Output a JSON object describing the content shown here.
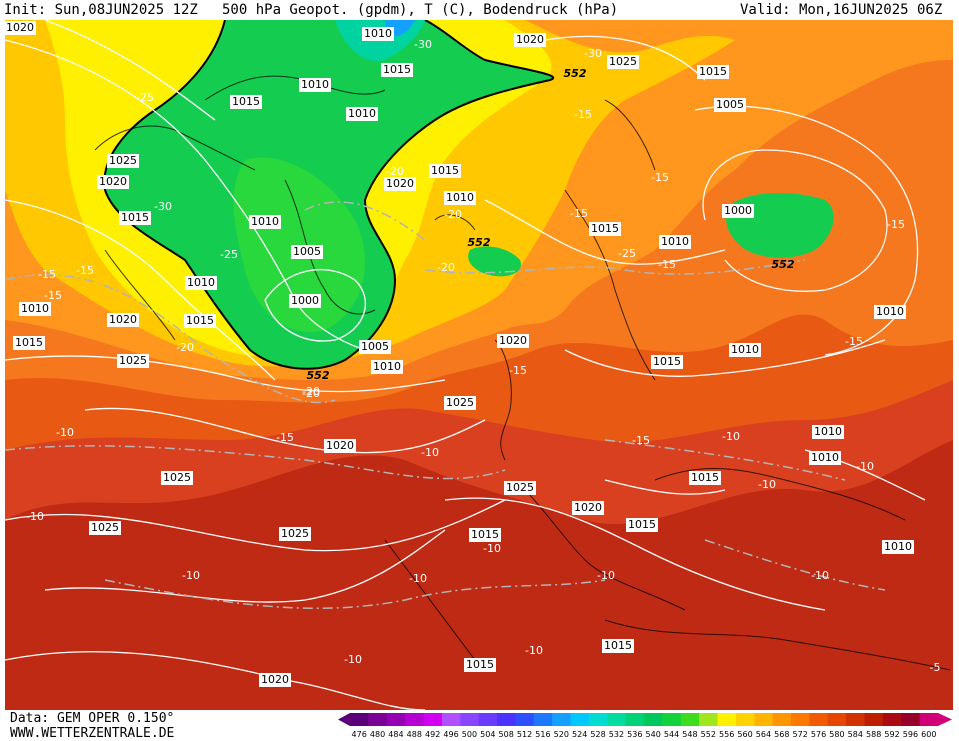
{
  "header": {
    "init": "Init: Sun,08JUN2025 12Z",
    "title": "500 hPa Geopot. (gpdm), T (C), Bodendruck (hPa)",
    "valid": "Valid: Mon,16JUN2025 06Z"
  },
  "footer": {
    "data_source": "Data: GEM OPER 0.150°",
    "website": "WWW.WETTERZENTRALE.DE"
  },
  "colorbar": {
    "values": [
      "476",
      "480",
      "484",
      "488",
      "492",
      "496",
      "500",
      "504",
      "508",
      "512",
      "516",
      "520",
      "524",
      "528",
      "532",
      "536",
      "540",
      "544",
      "548",
      "552",
      "556",
      "560",
      "564",
      "568",
      "572",
      "576",
      "580",
      "584",
      "588",
      "592",
      "596",
      "600"
    ],
    "colors": [
      "#5a007a",
      "#7a0096",
      "#9600b4",
      "#b400d2",
      "#d200f0",
      "#b050ff",
      "#8a46ff",
      "#6a3cff",
      "#4b32ff",
      "#2d50ff",
      "#1e78ff",
      "#14a0ff",
      "#00c8ff",
      "#00dcd2",
      "#00dca0",
      "#00d278",
      "#00c85a",
      "#14d23c",
      "#3cdc1e",
      "#a0e61e",
      "#fff000",
      "#ffd200",
      "#ffb400",
      "#ff9600",
      "#ff7800",
      "#f05a00",
      "#e64600",
      "#d23200",
      "#be1e00",
      "#aa0a14",
      "#960028",
      "#d20078"
    ]
  },
  "map": {
    "isobar_labels": [
      {
        "text": "1020"
      },
      {
        "text": "1010"
      },
      {
        "text": "1015"
      },
      {
        "text": "1020"
      },
      {
        "text": "1025"
      },
      {
        "text": "1015"
      },
      {
        "text": "1015"
      },
      {
        "text": "1025"
      },
      {
        "text": "1010"
      },
      {
        "text": "1010"
      },
      {
        "text": "1020"
      },
      {
        "text": "1015"
      },
      {
        "text": "1010"
      },
      {
        "text": "1020"
      },
      {
        "text": "1005"
      },
      {
        "text": "1015"
      },
      {
        "text": "1010"
      },
      {
        "text": "1005"
      },
      {
        "text": "1000"
      },
      {
        "text": "1010"
      },
      {
        "text": "1010"
      },
      {
        "text": "1015"
      },
      {
        "text": "1010"
      },
      {
        "text": "1005"
      },
      {
        "text": "1000"
      },
      {
        "text": "1010"
      },
      {
        "text": "1015"
      },
      {
        "text": "1020"
      },
      {
        "text": "1015"
      },
      {
        "text": "1010"
      },
      {
        "text": "1025"
      },
      {
        "text": "1020"
      },
      {
        "text": "1025"
      },
      {
        "text": "1025"
      },
      {
        "text": "1025"
      },
      {
        "text": "1025"
      },
      {
        "text": "1020"
      },
      {
        "text": "1015"
      },
      {
        "text": "1015"
      },
      {
        "text": "1010"
      },
      {
        "text": "1010"
      },
      {
        "text": "1010"
      },
      {
        "text": "1015"
      },
      {
        "text": "1025"
      },
      {
        "text": "1015"
      },
      {
        "text": "1020"
      },
      {
        "text": "1015"
      },
      {
        "text": "1020"
      },
      {
        "text": "1010"
      },
      {
        "text": "1015"
      }
    ],
    "temp_labels": [
      {
        "text": "-25"
      },
      {
        "text": "-30"
      },
      {
        "text": "-30"
      },
      {
        "text": "-30"
      },
      {
        "text": "-25"
      },
      {
        "text": "-25"
      },
      {
        "text": "-15"
      },
      {
        "text": "-15"
      },
      {
        "text": "-20"
      },
      {
        "text": "-20"
      },
      {
        "text": "-20"
      },
      {
        "text": "-20"
      },
      {
        "text": "-20"
      },
      {
        "text": "-15"
      },
      {
        "text": "-15"
      },
      {
        "text": "-15"
      },
      {
        "text": "-15"
      },
      {
        "text": "-15"
      },
      {
        "text": "-15"
      },
      {
        "text": "-15"
      },
      {
        "text": "-15"
      },
      {
        "text": "-15"
      },
      {
        "text": "-10"
      },
      {
        "text": "-10"
      },
      {
        "text": "-10"
      },
      {
        "text": "-10"
      },
      {
        "text": "-10"
      },
      {
        "text": "-10"
      },
      {
        "text": "-10"
      },
      {
        "text": "-10"
      },
      {
        "text": "-10"
      },
      {
        "text": "-10"
      },
      {
        "text": "-10"
      },
      {
        "text": "-10"
      },
      {
        "text": "-10"
      },
      {
        "text": "-5"
      },
      {
        "text": "-15"
      },
      {
        "text": "-20"
      }
    ],
    "contour_552_labels": [
      {
        "text": "552"
      },
      {
        "text": "552"
      },
      {
        "text": "552"
      },
      {
        "text": "552"
      }
    ],
    "colors": {
      "green": "#00c85a",
      "lightgreen": "#3cdc1e",
      "yellow": "#fff000",
      "gold": "#ffd200",
      "orange": "#ff9600",
      "darkorange": "#f05a00",
      "red": "#d23200",
      "darkred": "#aa0a14"
    }
  }
}
